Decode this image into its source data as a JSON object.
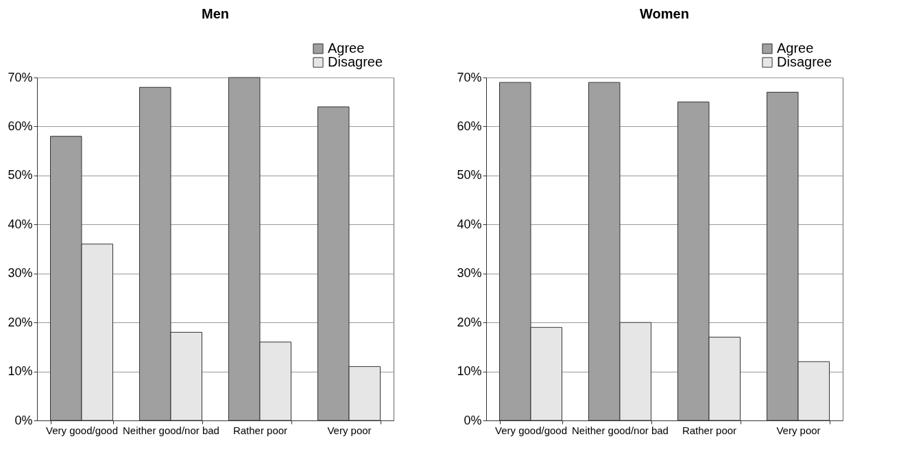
{
  "chart_data": [
    {
      "type": "bar",
      "title": "Men",
      "categories": [
        "Very good/good",
        "Neither good/nor bad",
        "Rather poor",
        "Very poor"
      ],
      "series": [
        {
          "name": "Agree",
          "color": "#a0a0a0",
          "values": [
            58,
            68,
            70,
            64
          ]
        },
        {
          "name": "Disagree",
          "color": "#e6e6e6",
          "values": [
            36,
            18,
            16,
            11
          ]
        }
      ],
      "ylim": [
        0,
        70
      ],
      "yticks": [
        {
          "value": 0,
          "label": "0%"
        },
        {
          "value": 10,
          "label": "10%"
        },
        {
          "value": 20,
          "label": "20%"
        },
        {
          "value": 30,
          "label": "30%"
        },
        {
          "value": 40,
          "label": "40%"
        },
        {
          "value": 50,
          "label": "50%"
        },
        {
          "value": 60,
          "label": "60%"
        },
        {
          "value": 70,
          "label": "70%"
        }
      ],
      "grid": "y",
      "legend": "top right"
    },
    {
      "type": "bar",
      "title": "Women",
      "categories": [
        "Very good/good",
        "Neither good/nor bad",
        "Rather poor",
        "Very poor"
      ],
      "series": [
        {
          "name": "Agree",
          "color": "#a0a0a0",
          "values": [
            69,
            69,
            65,
            67
          ]
        },
        {
          "name": "Disagree",
          "color": "#e6e6e6",
          "values": [
            19,
            20,
            17,
            12
          ]
        }
      ],
      "ylim": [
        0,
        70
      ],
      "yticks": [
        {
          "value": 0,
          "label": "0%"
        },
        {
          "value": 10,
          "label": "10%"
        },
        {
          "value": 20,
          "label": "20%"
        },
        {
          "value": 30,
          "label": "30%"
        },
        {
          "value": 40,
          "label": "40%"
        },
        {
          "value": 50,
          "label": "50%"
        },
        {
          "value": 60,
          "label": "60%"
        },
        {
          "value": 70,
          "label": "70%"
        }
      ],
      "grid": "y",
      "legend": "top right"
    }
  ]
}
